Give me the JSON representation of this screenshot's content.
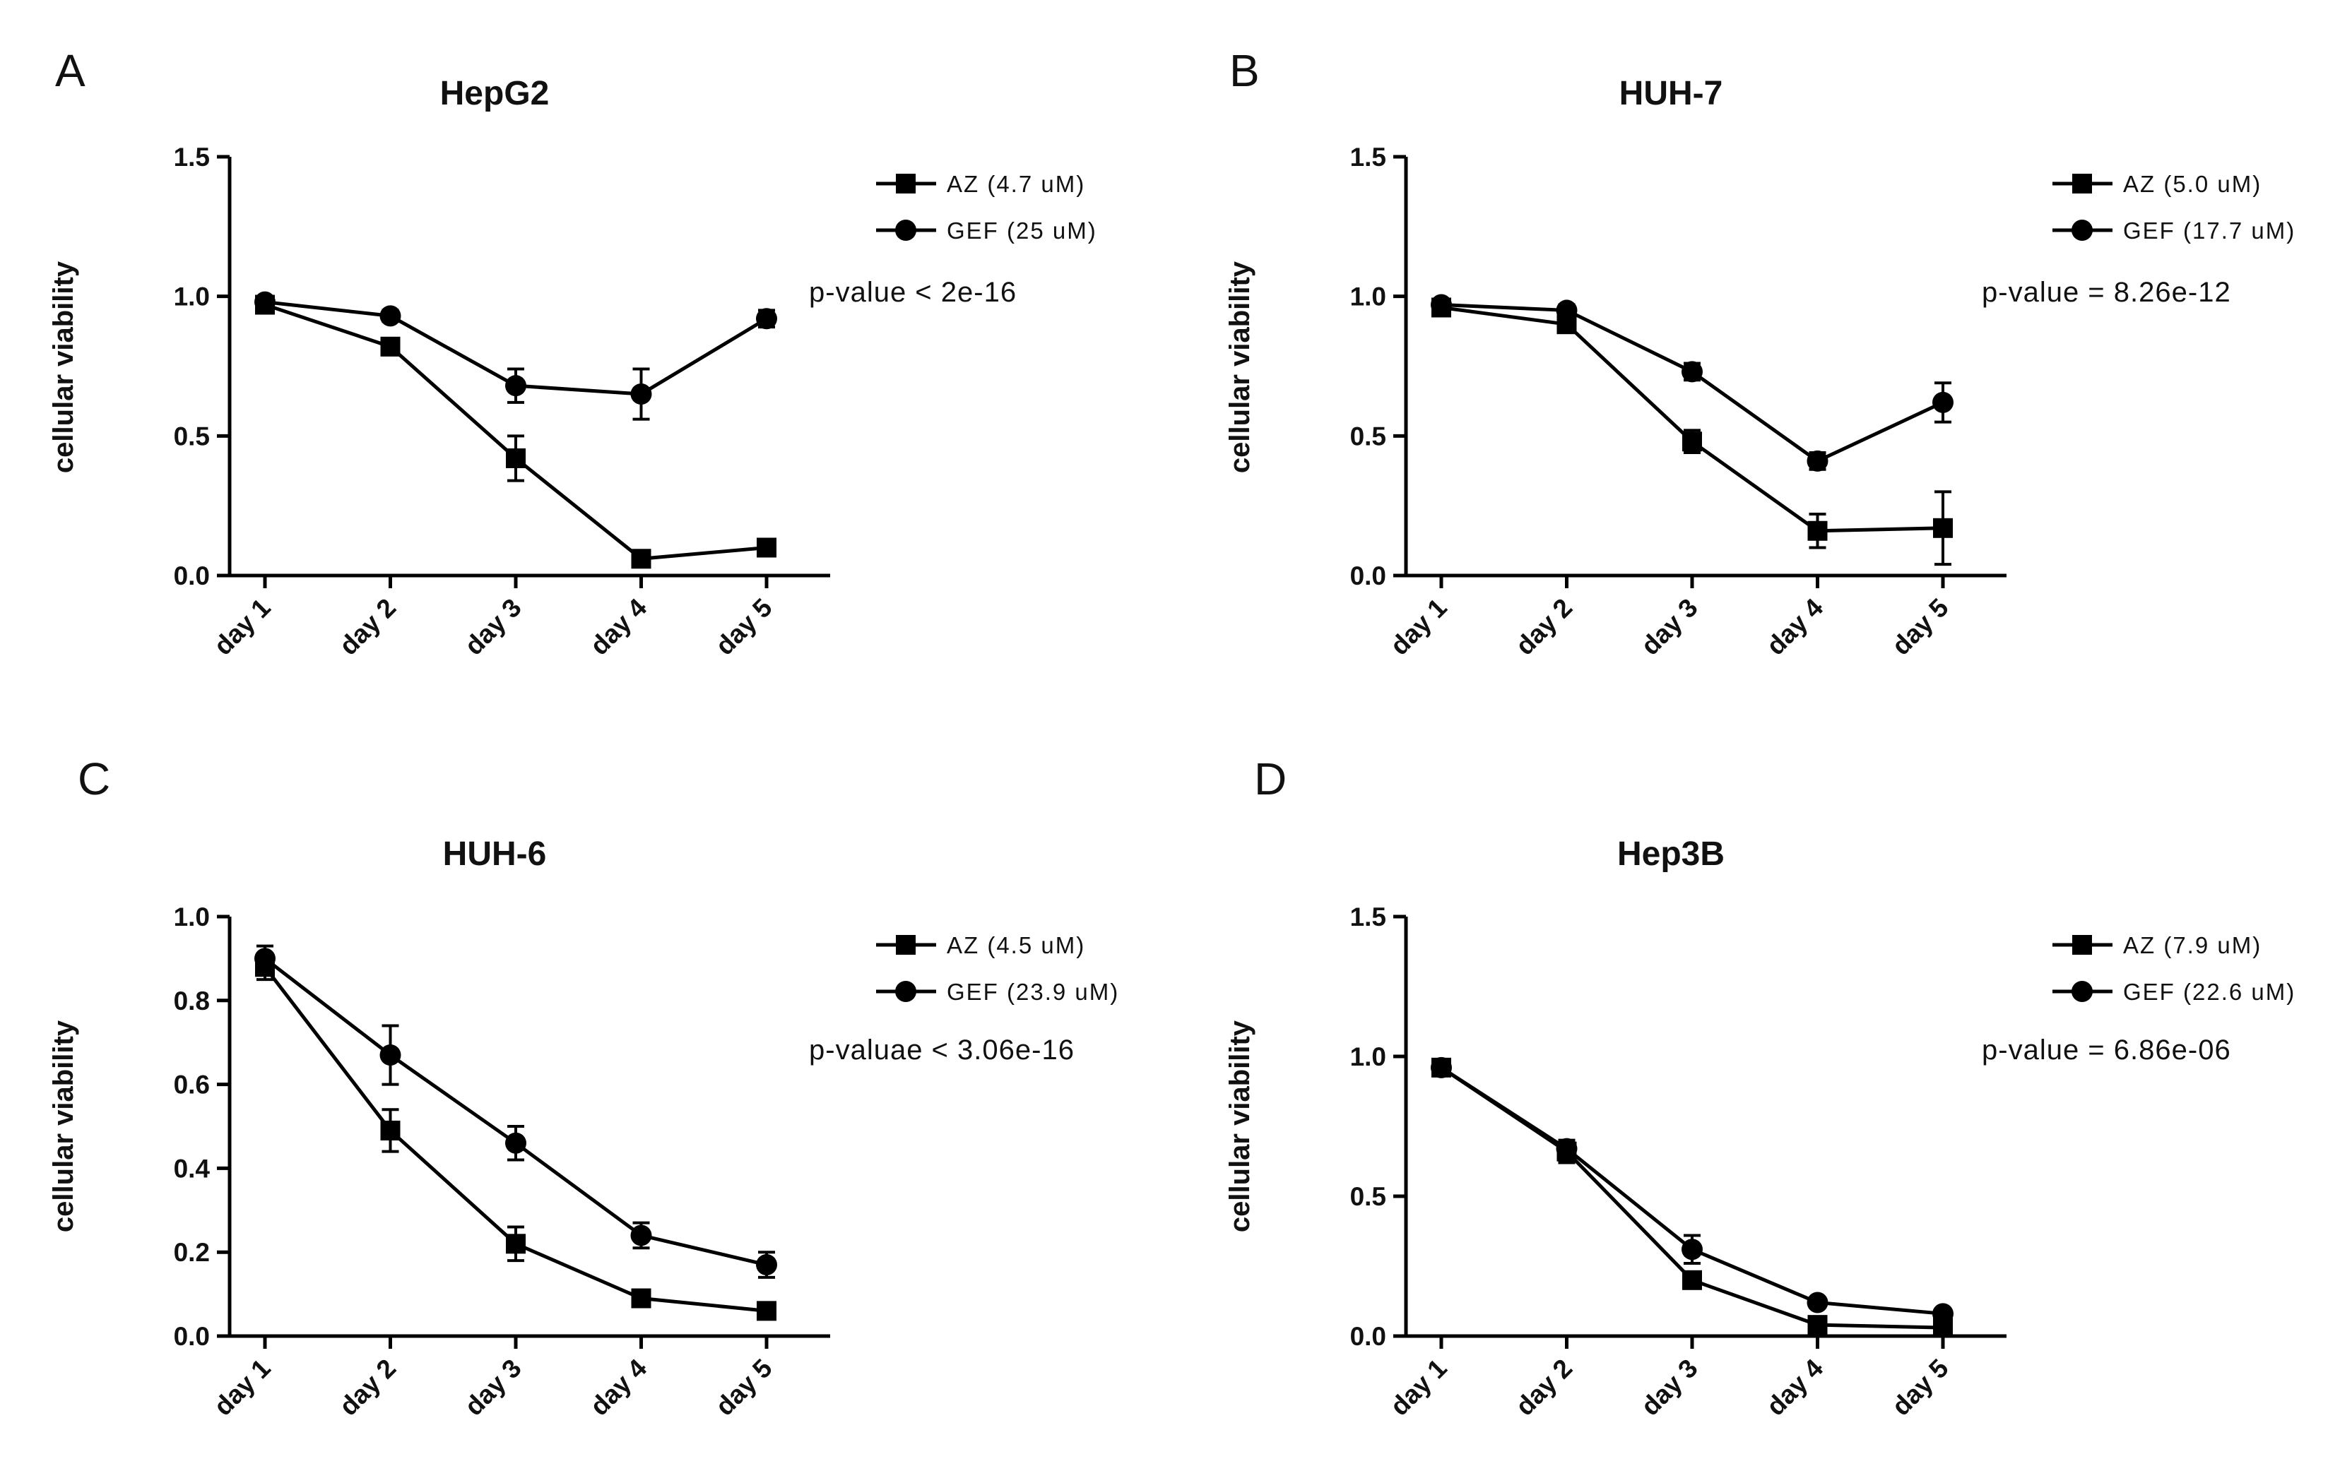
{
  "chart_data": [
    {
      "panel": "A",
      "type": "line",
      "title": "HepG2",
      "xlabel": "",
      "ylabel": "cellular viability",
      "categories": [
        "day 1",
        "day 2",
        "day 3",
        "day 4",
        "day 5"
      ],
      "ylim": [
        0,
        1.5
      ],
      "yticks": [
        0.0,
        0.5,
        1.0,
        1.5
      ],
      "ytick_labels": [
        "0.0",
        "0.5",
        "1.0",
        "1.5"
      ],
      "pvalue": "p-value < 2e-16",
      "series": [
        {
          "name": "AZ (4.7 uM)",
          "marker": "square",
          "values": [
            0.97,
            0.82,
            0.42,
            0.06,
            0.1
          ],
          "errors": [
            0.02,
            0.03,
            0.08,
            0.02,
            0.03
          ]
        },
        {
          "name": "GEF (25 uM)",
          "marker": "circle",
          "values": [
            0.98,
            0.93,
            0.68,
            0.65,
            0.92
          ],
          "errors": [
            0.02,
            0.02,
            0.06,
            0.09,
            0.03
          ]
        }
      ]
    },
    {
      "panel": "B",
      "type": "line",
      "title": "HUH-7",
      "xlabel": "",
      "ylabel": "cellular viability",
      "categories": [
        "day 1",
        "day 2",
        "day 3",
        "day 4",
        "day 5"
      ],
      "ylim": [
        0,
        1.5
      ],
      "yticks": [
        0.0,
        0.5,
        1.0,
        1.5
      ],
      "ytick_labels": [
        "0.0",
        "0.5",
        "1.0",
        "1.5"
      ],
      "pvalue": "p-value = 8.26e-12",
      "series": [
        {
          "name": "AZ (5.0 uM)",
          "marker": "square",
          "values": [
            0.96,
            0.9,
            0.48,
            0.16,
            0.17
          ],
          "errors": [
            0.02,
            0.03,
            0.04,
            0.06,
            0.13
          ]
        },
        {
          "name": "GEF (17.7 uM)",
          "marker": "circle",
          "values": [
            0.97,
            0.95,
            0.73,
            0.41,
            0.62
          ],
          "errors": [
            0.02,
            0.02,
            0.03,
            0.03,
            0.07
          ]
        }
      ]
    },
    {
      "panel": "C",
      "type": "line",
      "title": "HUH-6",
      "xlabel": "",
      "ylabel": "cellular viability",
      "categories": [
        "day 1",
        "day 2",
        "day 3",
        "day 4",
        "day 5"
      ],
      "ylim": [
        0,
        1.0
      ],
      "yticks": [
        0.0,
        0.2,
        0.4,
        0.6,
        0.8,
        1.0
      ],
      "ytick_labels": [
        "0.0",
        "0.2",
        "0.4",
        "0.6",
        "0.8",
        "1.0"
      ],
      "pvalue": "p-valuae < 3.06e-16",
      "series": [
        {
          "name": "AZ (4.5 uM)",
          "marker": "square",
          "values": [
            0.88,
            0.49,
            0.22,
            0.09,
            0.06
          ],
          "errors": [
            0.03,
            0.05,
            0.04,
            0.01,
            0.01
          ]
        },
        {
          "name": "GEF (23.9 uM)",
          "marker": "circle",
          "values": [
            0.9,
            0.67,
            0.46,
            0.24,
            0.17
          ],
          "errors": [
            0.03,
            0.07,
            0.04,
            0.03,
            0.03
          ]
        }
      ]
    },
    {
      "panel": "D",
      "type": "line",
      "title": "Hep3B",
      "xlabel": "",
      "ylabel": "cellular viability",
      "categories": [
        "day 1",
        "day 2",
        "day 3",
        "day 4",
        "day 5"
      ],
      "ylim": [
        0,
        1.5
      ],
      "yticks": [
        0.0,
        0.5,
        1.0,
        1.5
      ],
      "ytick_labels": [
        "0.0",
        "0.5",
        "1.0",
        "1.5"
      ],
      "pvalue": "p-value = 6.86e-06",
      "series": [
        {
          "name": "AZ (7.9 uM)",
          "marker": "square",
          "values": [
            0.96,
            0.66,
            0.2,
            0.04,
            0.03
          ],
          "errors": [
            0.01,
            0.04,
            0.02,
            0.01,
            0.01
          ]
        },
        {
          "name": "GEF (22.6 uM)",
          "marker": "circle",
          "values": [
            0.96,
            0.67,
            0.31,
            0.12,
            0.08
          ],
          "errors": [
            0.01,
            0.03,
            0.05,
            0.01,
            0.01
          ]
        }
      ]
    }
  ]
}
